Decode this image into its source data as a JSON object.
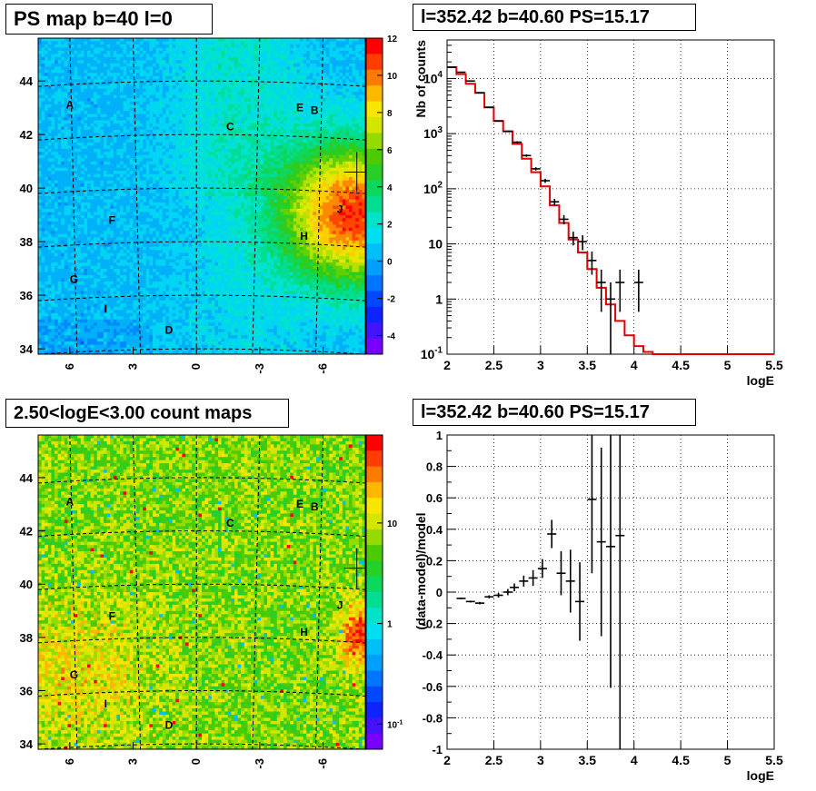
{
  "panels": {
    "map1_title": "PS map b=40 l=0",
    "spec_title": "l=352.42 b=40.60 PS=15.17",
    "map2_title": "2.50<logE<3.00 count maps",
    "resid_title": "l=352.42 b=40.60 PS=15.17"
  },
  "chart_data": [
    {
      "type": "heatmap",
      "id": "ps-map",
      "title": "PS map b=40 l=0",
      "x_ticks": [
        "6",
        "3",
        "0",
        "-3",
        "-6"
      ],
      "y_ticks": [
        "34",
        "36",
        "38",
        "40",
        "42",
        "44"
      ],
      "zlim": [
        -5,
        12
      ],
      "colorbar_ticks": [
        "12",
        "10",
        "8",
        "6",
        "4",
        "2",
        "0",
        "-2",
        "-4"
      ],
      "hotspot": {
        "l": -7.6,
        "b": 40.6
      },
      "labels": [
        {
          "text": "A",
          "l": 6.0,
          "b": 43.1
        },
        {
          "text": "B",
          "l": -5.6,
          "b": 42.9
        },
        {
          "text": "C",
          "l": -1.6,
          "b": 42.3
        },
        {
          "text": "D",
          "l": 1.3,
          "b": 34.7
        },
        {
          "text": "E",
          "l": -4.9,
          "b": 43.0
        },
        {
          "text": "F",
          "l": 4.0,
          "b": 38.8
        },
        {
          "text": "G",
          "l": 5.8,
          "b": 36.6
        },
        {
          "text": "H",
          "l": -5.1,
          "b": 38.2
        },
        {
          "text": "I",
          "l": 4.3,
          "b": 35.5
        },
        {
          "text": "J",
          "l": -6.8,
          "b": 39.2
        }
      ],
      "marker": {
        "l": -7.6,
        "b": 40.6
      }
    },
    {
      "type": "line",
      "id": "spectrum",
      "title": "l=352.42 b=40.60 PS=15.17",
      "xlabel": "logE",
      "ylabel": "Nb of counts",
      "xlim": [
        2,
        5.5
      ],
      "ylim": [
        0.1,
        50000
      ],
      "y_log": true,
      "x_ticks": [
        "2",
        "2.5",
        "3",
        "3.5",
        "4",
        "4.5",
        "5",
        "5.5"
      ],
      "y_ticks": [
        "10^{-1}",
        "1",
        "10",
        "10^{2}",
        "10^{3}",
        "10^{4}"
      ],
      "grid": true,
      "data_points": [
        {
          "x": 2.05,
          "y": 16000
        },
        {
          "x": 2.15,
          "y": 13000
        },
        {
          "x": 2.25,
          "y": 9000
        },
        {
          "x": 2.35,
          "y": 5500
        },
        {
          "x": 2.45,
          "y": 3000
        },
        {
          "x": 2.55,
          "y": 1700
        },
        {
          "x": 2.65,
          "y": 1100
        },
        {
          "x": 2.75,
          "y": 700
        },
        {
          "x": 2.85,
          "y": 400
        },
        {
          "x": 2.95,
          "y": 230
        },
        {
          "x": 3.05,
          "y": 140
        },
        {
          "x": 3.15,
          "y": 58
        },
        {
          "x": 3.25,
          "y": 28
        },
        {
          "x": 3.35,
          "y": 13
        },
        {
          "x": 3.45,
          "y": 11
        },
        {
          "x": 3.55,
          "y": 5
        },
        {
          "x": 3.65,
          "y": 2
        },
        {
          "x": 3.75,
          "y": 1
        },
        {
          "x": 3.85,
          "y": 2
        },
        {
          "x": 4.05,
          "y": 2
        }
      ],
      "model_steps": [
        {
          "x0": 2.0,
          "x1": 2.1,
          "y": 16000
        },
        {
          "x0": 2.1,
          "x1": 2.2,
          "y": 12000
        },
        {
          "x0": 2.2,
          "x1": 2.3,
          "y": 8000
        },
        {
          "x0": 2.3,
          "x1": 2.4,
          "y": 5500
        },
        {
          "x0": 2.4,
          "x1": 2.5,
          "y": 3000
        },
        {
          "x0": 2.5,
          "x1": 2.6,
          "y": 1700
        },
        {
          "x0": 2.6,
          "x1": 2.7,
          "y": 1100
        },
        {
          "x0": 2.7,
          "x1": 2.8,
          "y": 650
        },
        {
          "x0": 2.8,
          "x1": 2.9,
          "y": 350
        },
        {
          "x0": 2.9,
          "x1": 3.0,
          "y": 200
        },
        {
          "x0": 3.0,
          "x1": 3.1,
          "y": 110
        },
        {
          "x0": 3.1,
          "x1": 3.2,
          "y": 50
        },
        {
          "x0": 3.2,
          "x1": 3.3,
          "y": 24
        },
        {
          "x0": 3.3,
          "x1": 3.4,
          "y": 12
        },
        {
          "x0": 3.4,
          "x1": 3.5,
          "y": 7
        },
        {
          "x0": 3.5,
          "x1": 3.6,
          "y": 3.5
        },
        {
          "x0": 3.6,
          "x1": 3.7,
          "y": 1.6
        },
        {
          "x0": 3.7,
          "x1": 3.8,
          "y": 0.8
        },
        {
          "x0": 3.8,
          "x1": 3.9,
          "y": 0.4
        },
        {
          "x0": 3.9,
          "x1": 4.0,
          "y": 0.22
        },
        {
          "x0": 4.0,
          "x1": 4.1,
          "y": 0.14
        },
        {
          "x0": 4.1,
          "x1": 4.2,
          "y": 0.11
        },
        {
          "x0": 4.2,
          "x1": 5.5,
          "y": 0.1
        }
      ]
    },
    {
      "type": "heatmap",
      "id": "count-map",
      "title": "2.50<logE<3.00 count maps",
      "x_ticks": [
        "6",
        "3",
        "0",
        "-3",
        "-6"
      ],
      "y_ticks": [
        "34",
        "36",
        "38",
        "40",
        "42",
        "44"
      ],
      "z_log": true,
      "colorbar_ticks": [
        "10",
        "1",
        "10^{-1}"
      ],
      "labels": [
        {
          "text": "A",
          "l": 6.0,
          "b": 43.1
        },
        {
          "text": "B",
          "l": -5.6,
          "b": 42.9
        },
        {
          "text": "C",
          "l": -1.6,
          "b": 42.3
        },
        {
          "text": "D",
          "l": 1.3,
          "b": 34.7
        },
        {
          "text": "E",
          "l": -4.9,
          "b": 43.0
        },
        {
          "text": "F",
          "l": 4.0,
          "b": 38.8
        },
        {
          "text": "G",
          "l": 5.8,
          "b": 36.6
        },
        {
          "text": "H",
          "l": -5.1,
          "b": 38.2
        },
        {
          "text": "I",
          "l": 4.3,
          "b": 35.5
        },
        {
          "text": "J",
          "l": -6.8,
          "b": 39.2
        }
      ],
      "marker": {
        "l": -7.6,
        "b": 40.6
      }
    },
    {
      "type": "scatter",
      "id": "residuals",
      "title": "l=352.42 b=40.60 PS=15.17",
      "xlabel": "logE",
      "ylabel": "(data-model)/model",
      "xlim": [
        2,
        5.5
      ],
      "ylim": [
        -1,
        1
      ],
      "x_ticks": [
        "2",
        "2.5",
        "3",
        "3.5",
        "4",
        "4.5",
        "5",
        "5.5"
      ],
      "y_ticks": [
        "-1",
        "-0.8",
        "-0.6",
        "-0.4",
        "-0.2",
        "0",
        "0.2",
        "0.4",
        "0.6",
        "0.8",
        "1"
      ],
      "grid": true,
      "points": [
        {
          "x": 2.15,
          "y": -0.04,
          "err": 0.005
        },
        {
          "x": 2.25,
          "y": -0.06,
          "err": 0.006
        },
        {
          "x": 2.35,
          "y": -0.07,
          "err": 0.008
        },
        {
          "x": 2.45,
          "y": -0.03,
          "err": 0.01
        },
        {
          "x": 2.55,
          "y": -0.02,
          "err": 0.015
        },
        {
          "x": 2.65,
          "y": 0.0,
          "err": 0.02
        },
        {
          "x": 2.72,
          "y": 0.03,
          "err": 0.025
        },
        {
          "x": 2.82,
          "y": 0.07,
          "err": 0.035
        },
        {
          "x": 2.92,
          "y": 0.09,
          "err": 0.05
        },
        {
          "x": 3.02,
          "y": 0.15,
          "err": 0.06
        },
        {
          "x": 3.12,
          "y": 0.37,
          "err": 0.09
        },
        {
          "x": 3.22,
          "y": 0.12,
          "err": 0.14
        },
        {
          "x": 3.32,
          "y": 0.07,
          "err": 0.2
        },
        {
          "x": 3.42,
          "y": -0.06,
          "err": 0.25
        },
        {
          "x": 3.55,
          "y": 0.59,
          "err": 0.47
        },
        {
          "x": 3.65,
          "y": 0.32,
          "err": 0.6
        },
        {
          "x": 3.75,
          "y": 0.29,
          "err": 0.9
        },
        {
          "x": 3.85,
          "y": 0.36,
          "err": 1.4
        }
      ]
    }
  ]
}
